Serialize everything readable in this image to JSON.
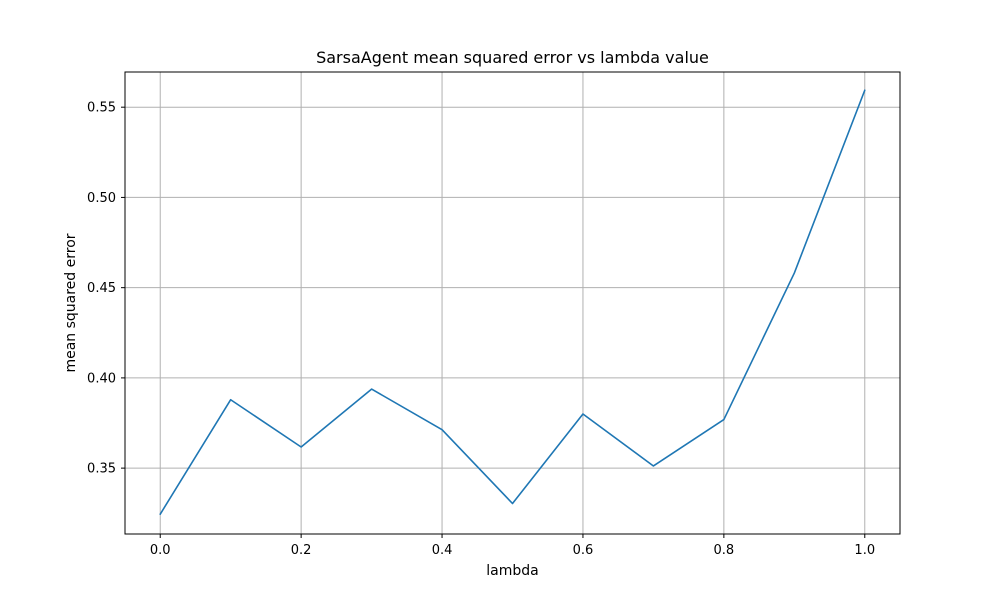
{
  "chart_data": {
    "type": "line",
    "title": "SarsaAgent mean squared error vs lambda value",
    "xlabel": "lambda",
    "ylabel": "mean squared error",
    "xlim": [
      -0.05,
      1.05
    ],
    "ylim": [
      0.3135,
      0.5695
    ],
    "grid": true,
    "x_ticks": [
      0.0,
      0.2,
      0.4,
      0.6,
      0.8,
      1.0
    ],
    "x_tick_labels": [
      "0.0",
      "0.2",
      "0.4",
      "0.6",
      "0.8",
      "1.0"
    ],
    "y_ticks": [
      0.35,
      0.4,
      0.45,
      0.5,
      0.55
    ],
    "y_tick_labels": [
      "0.35",
      "0.40",
      "0.45",
      "0.50",
      "0.55"
    ],
    "x": [
      0.0,
      0.1,
      0.2,
      0.3,
      0.4,
      0.5,
      0.6,
      0.7,
      0.8,
      0.9,
      1.0
    ],
    "series": [
      {
        "values": [
          0.3245,
          0.3879,
          0.3617,
          0.3938,
          0.3713,
          0.3304,
          0.38,
          0.3512,
          0.3769,
          0.4581,
          0.5594
        ],
        "color": "#1f77b4"
      }
    ]
  }
}
